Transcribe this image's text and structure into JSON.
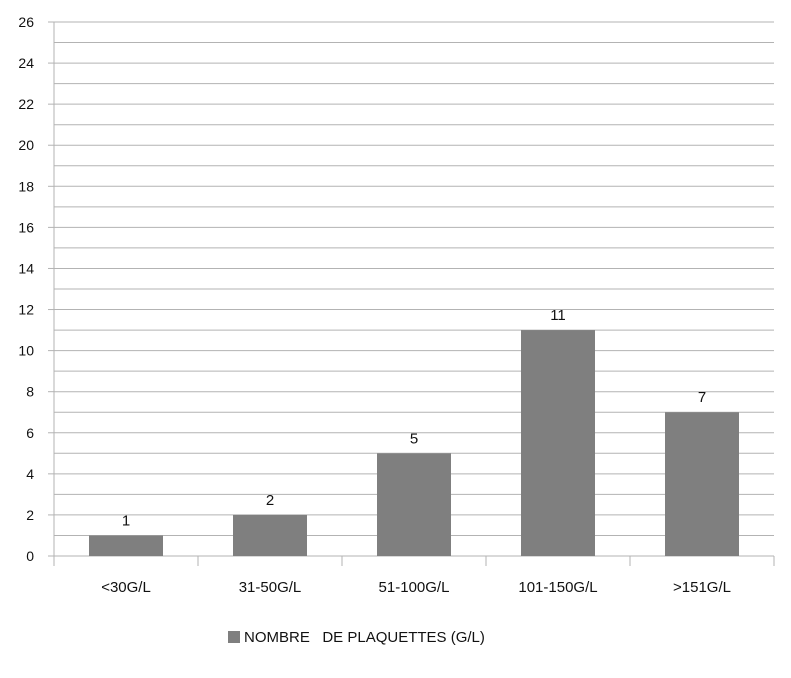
{
  "chart_data": {
    "type": "bar",
    "categories": [
      "<30G/L",
      "31-50G/L",
      "51-100G/L",
      "101-150G/L",
      ">151G/L"
    ],
    "series": [
      {
        "name": "NOMBRE   DE PLAQUETTES (G/L)",
        "values": [
          1,
          2,
          5,
          11,
          7
        ],
        "color": "#7f7f7f"
      }
    ],
    "data_labels": [
      "1",
      "2",
      "5",
      "11",
      "7"
    ],
    "yticks": [
      "0",
      "2",
      "4",
      "6",
      "8",
      "10",
      "12",
      "14",
      "16",
      "18",
      "20",
      "22",
      "24",
      "26"
    ],
    "ylim": [
      0,
      26
    ],
    "grid_step": 1,
    "grid": true,
    "legend_position": "bottom",
    "colors": {
      "bar": "#7f7f7f",
      "grid": "#b3b3b3",
      "axis": "#b3b3b3",
      "text": "#111111"
    }
  }
}
